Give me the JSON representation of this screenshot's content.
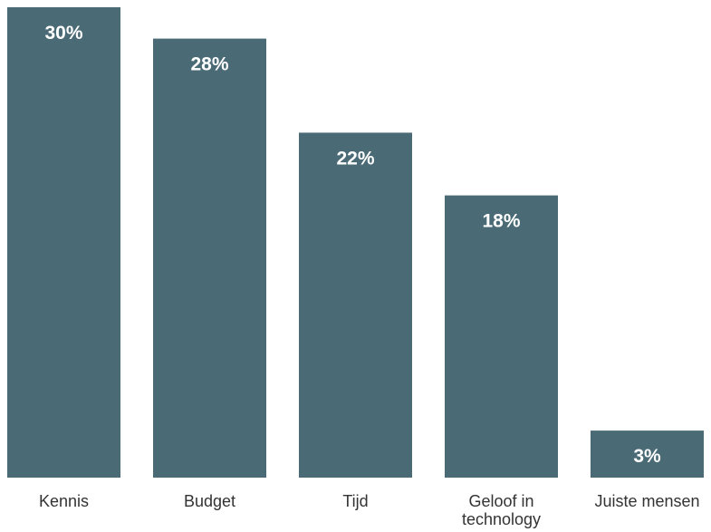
{
  "chart_data": {
    "type": "bar",
    "categories": [
      "Kennis",
      "Budget",
      "Tijd",
      "Geloof in technology",
      "Juiste mensen"
    ],
    "category_label_lines": [
      [
        "Kennis"
      ],
      [
        "Budget"
      ],
      [
        "Tijd"
      ],
      [
        "Geloof in",
        "technology"
      ],
      [
        "Juiste mensen"
      ]
    ],
    "values": [
      30,
      28,
      22,
      18,
      3
    ],
    "data_labels": [
      "30%",
      "28%",
      "22%",
      "18%",
      "3%"
    ],
    "value_unit": "%",
    "ylim": [
      0,
      30
    ],
    "grid": false,
    "legend": "none",
    "bar_color": "#4a6a75",
    "label_color": "#ffffff",
    "category_color": "#333333"
  }
}
